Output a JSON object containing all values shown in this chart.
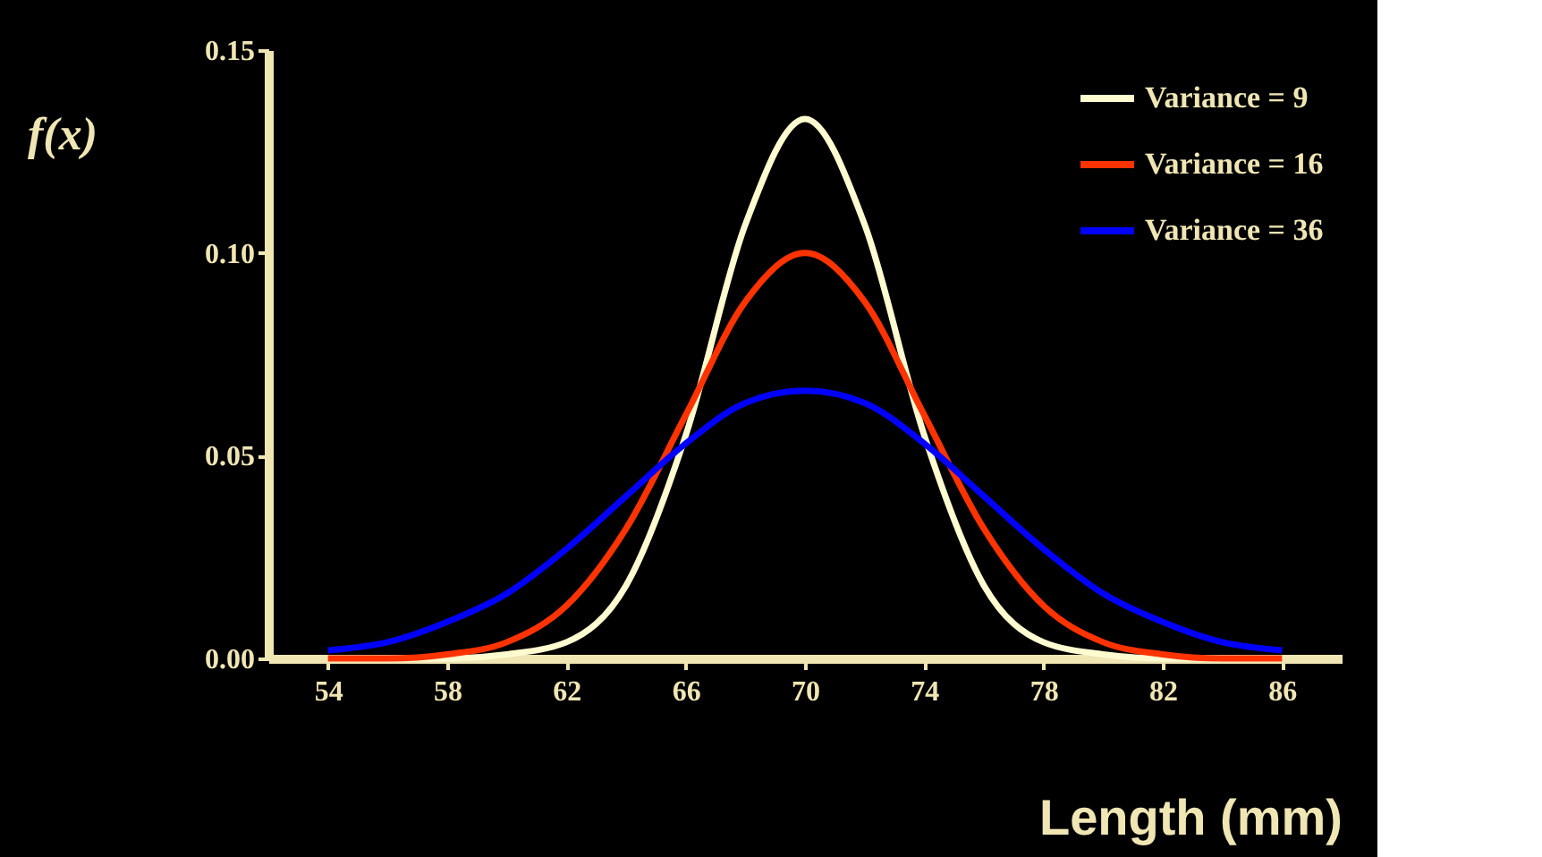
{
  "chart_data": {
    "type": "line",
    "xlabel": "Length (mm)",
    "ylabel": "f(x)",
    "x": [
      54,
      56,
      58,
      60,
      62,
      64,
      66,
      68,
      70,
      72,
      74,
      76,
      78,
      80,
      82,
      84,
      86
    ],
    "series": [
      {
        "name": "Variance = 9",
        "color": "#fffbd0",
        "values": [
          0,
          0,
          0,
          0.001,
          0.004,
          0.018,
          0.055,
          0.107,
          0.133,
          0.107,
          0.055,
          0.018,
          0.004,
          0.001,
          0,
          0,
          0
        ]
      },
      {
        "name": "Variance = 16",
        "color": "#ff3300",
        "values": [
          0,
          0,
          0.001,
          0.004,
          0.013,
          0.032,
          0.06,
          0.088,
          0.1,
          0.088,
          0.06,
          0.032,
          0.013,
          0.004,
          0.001,
          0,
          0
        ]
      },
      {
        "name": "Variance = 36",
        "color": "#0000ff",
        "values": [
          0.002,
          0.004,
          0.009,
          0.016,
          0.027,
          0.04,
          0.053,
          0.063,
          0.066,
          0.063,
          0.053,
          0.04,
          0.027,
          0.016,
          0.009,
          0.004,
          0.002
        ]
      }
    ],
    "xlim": [
      52,
      88
    ],
    "xticks": [
      54,
      58,
      62,
      66,
      70,
      74,
      78,
      82,
      86
    ],
    "ylim": [
      0,
      0.15
    ],
    "yticks": [
      {
        "value": 0,
        "label": "0.00"
      },
      {
        "value": 0.05,
        "label": "0.05"
      },
      {
        "value": 0.1,
        "label": "0.10"
      },
      {
        "value": 0.15,
        "label": "0.15"
      }
    ],
    "grid": false,
    "legend": "top right",
    "marker": "none",
    "line_style": "solid"
  }
}
